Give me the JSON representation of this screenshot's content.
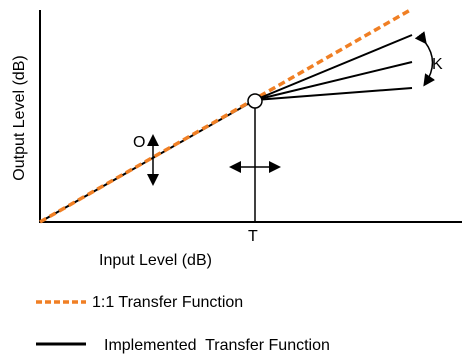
{
  "diagram": {
    "x_axis_label": "Input Level (dB)",
    "y_axis_label": "Output Level (dB)",
    "threshold_label": "T",
    "offset_label": "O",
    "knee_label": "K",
    "colors": {
      "reference_line": "#f07f24",
      "implemented_line": "#000000",
      "axes": "#000000",
      "knee_marker_fill": "#ffffff"
    }
  },
  "legend": {
    "items": [
      {
        "label": "1:1 Transfer Function",
        "style": "dashed",
        "color": "#f07f24"
      },
      {
        "label": "Implemented  Transfer Function",
        "style": "solid",
        "color": "#000000"
      }
    ]
  }
}
